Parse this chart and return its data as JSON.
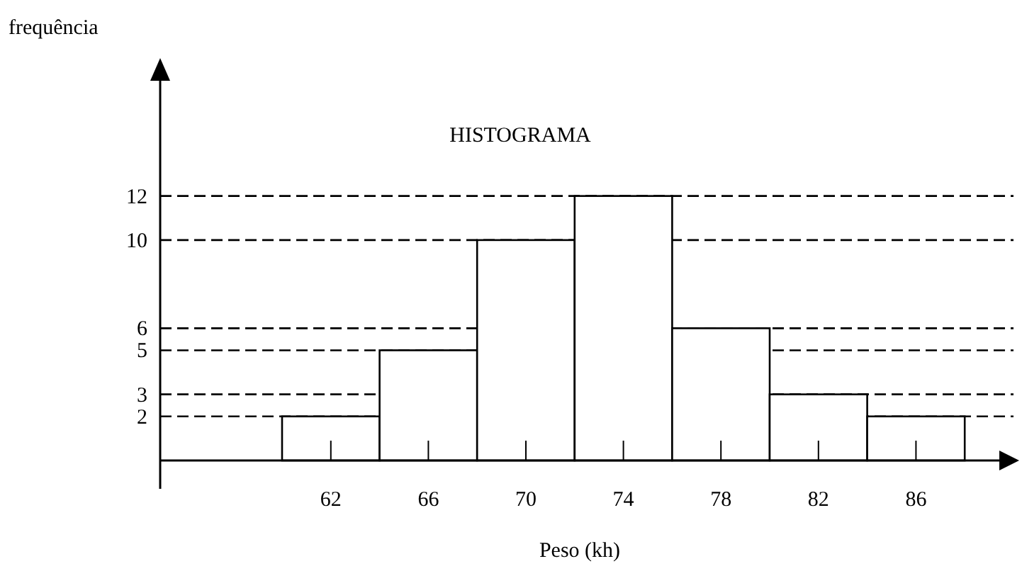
{
  "chart_data": {
    "type": "histogram",
    "title": "HISTOGRAMA",
    "xlabel": "Peso (kh)",
    "ylabel": "frequência",
    "bins": [
      60,
      64,
      68,
      72,
      76,
      80,
      84,
      88
    ],
    "values": [
      2,
      5,
      10,
      12,
      6,
      3,
      2
    ],
    "color": "#ffffff",
    "xlim": [
      55,
      90
    ],
    "xticks": [
      62,
      66,
      70,
      74,
      78,
      82,
      86
    ],
    "ylim": [
      0,
      18
    ],
    "yticks": [
      2,
      3,
      5,
      6,
      10,
      12
    ],
    "grid": "y",
    "line_style": "dashed"
  }
}
